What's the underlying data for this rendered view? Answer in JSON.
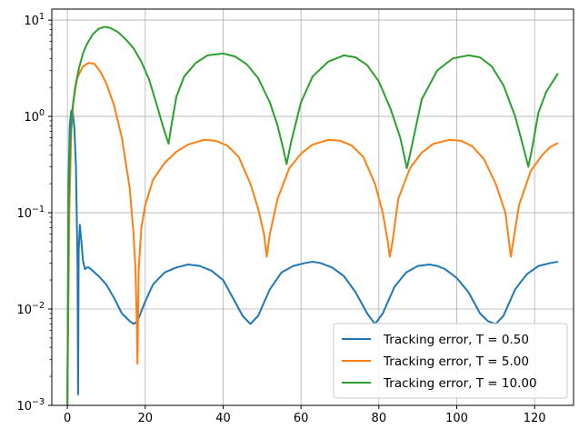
{
  "chart_data": {
    "type": "line",
    "title": "",
    "xlabel": "",
    "ylabel": "",
    "xlim": [
      -4,
      130
    ],
    "ylim": [
      0.001,
      13
    ],
    "yscale": "log",
    "grid": true,
    "legend_position": "lower-right",
    "x_ticks": [
      {
        "value": 0,
        "label": "0"
      },
      {
        "value": 20,
        "label": "20"
      },
      {
        "value": 40,
        "label": "40"
      },
      {
        "value": 60,
        "label": "60"
      },
      {
        "value": 80,
        "label": "80"
      },
      {
        "value": 100,
        "label": "100"
      },
      {
        "value": 120,
        "label": "120"
      }
    ],
    "y_ticks": [
      {
        "value": 0.001,
        "base": "10",
        "exp": "−3"
      },
      {
        "value": 0.01,
        "base": "10",
        "exp": "−2"
      },
      {
        "value": 0.1,
        "base": "10",
        "exp": "−1"
      },
      {
        "value": 1,
        "base": "10",
        "exp": "0"
      },
      {
        "value": 10,
        "base": "10",
        "exp": "1"
      }
    ],
    "series": [
      {
        "name": "Tracking error, T = 0.50",
        "color": "#1f77b4",
        "x": [
          0,
          0.3,
          0.6,
          1.0,
          1.4,
          1.8,
          2.2,
          2.6,
          2.75,
          2.9,
          3.2,
          3.6,
          4.0,
          4.5,
          5.0,
          5.5,
          6.5,
          8,
          10,
          12,
          14,
          16,
          17,
          18,
          20,
          22,
          25,
          28,
          31,
          34,
          37,
          40,
          43,
          45,
          47,
          49,
          52,
          55,
          58,
          61,
          63,
          65,
          68,
          71,
          74,
          77,
          79,
          81,
          84,
          87,
          90,
          93,
          95,
          97,
          100,
          103,
          106,
          108,
          110,
          112,
          115,
          118,
          121,
          124,
          126
        ],
        "y": [
          0.001,
          0.2,
          0.8,
          1.15,
          1.1,
          0.75,
          0.3,
          0.03,
          0.0013,
          0.04,
          0.075,
          0.05,
          0.032,
          0.026,
          0.027,
          0.027,
          0.025,
          0.022,
          0.018,
          0.013,
          0.009,
          0.0075,
          0.007,
          0.0075,
          0.012,
          0.018,
          0.024,
          0.027,
          0.029,
          0.028,
          0.025,
          0.02,
          0.012,
          0.0085,
          0.007,
          0.0085,
          0.016,
          0.024,
          0.028,
          0.03,
          0.031,
          0.03,
          0.027,
          0.022,
          0.015,
          0.009,
          0.007,
          0.009,
          0.017,
          0.024,
          0.028,
          0.029,
          0.028,
          0.026,
          0.021,
          0.015,
          0.009,
          0.0075,
          0.007,
          0.0085,
          0.016,
          0.023,
          0.028,
          0.03,
          0.031
        ]
      },
      {
        "name": "Tracking error, T = 5.00",
        "color": "#ff7f0e",
        "x": [
          0,
          0.5,
          1.0,
          1.5,
          2.5,
          4,
          5.5,
          7,
          8.5,
          10,
          12,
          14,
          16,
          17,
          17.5,
          17.8,
          18.0,
          18.3,
          19,
          20,
          22,
          25,
          28,
          31,
          35,
          38,
          41,
          44,
          47,
          49,
          50.5,
          51.2,
          52,
          54,
          57,
          60,
          63,
          67,
          70,
          73,
          76,
          79,
          81,
          82.3,
          82.8,
          83.5,
          85,
          88,
          91,
          94,
          98,
          101,
          104,
          107,
          110,
          112.5,
          113.9,
          114.5,
          116,
          119,
          122,
          124,
          126
        ],
        "y": [
          0.001,
          0.1,
          0.7,
          1.4,
          2.5,
          3.3,
          3.6,
          3.5,
          2.9,
          2.2,
          1.3,
          0.6,
          0.18,
          0.06,
          0.025,
          0.008,
          0.0027,
          0.025,
          0.07,
          0.12,
          0.22,
          0.33,
          0.43,
          0.51,
          0.57,
          0.56,
          0.5,
          0.38,
          0.2,
          0.11,
          0.06,
          0.035,
          0.06,
          0.14,
          0.29,
          0.41,
          0.51,
          0.57,
          0.56,
          0.5,
          0.38,
          0.2,
          0.1,
          0.05,
          0.035,
          0.05,
          0.14,
          0.29,
          0.42,
          0.52,
          0.57,
          0.56,
          0.49,
          0.36,
          0.2,
          0.1,
          0.035,
          0.05,
          0.12,
          0.27,
          0.4,
          0.48,
          0.53
        ]
      },
      {
        "name": "Tracking error, T = 10.00",
        "color": "#2ca02c",
        "x": [
          0,
          0.3,
          0.7,
          1.2,
          2,
          3,
          4,
          5,
          6.5,
          8,
          9.5,
          11,
          13,
          15,
          17,
          19,
          21,
          23,
          24.5,
          25.5,
          26,
          26.7,
          28,
          30,
          33,
          36,
          40,
          43,
          46,
          49,
          52,
          54,
          55.5,
          56.3,
          57.5,
          60,
          63,
          67,
          71,
          74,
          77,
          80,
          83,
          85.5,
          87.2,
          88.5,
          91,
          95,
          99,
          103,
          106,
          109,
          112,
          115,
          117,
          118.4,
          119.5,
          121,
          123,
          126
        ],
        "y": [
          0.001,
          0.1,
          0.5,
          1.1,
          2.0,
          3.2,
          4.5,
          5.6,
          7.1,
          8.1,
          8.5,
          8.3,
          7.5,
          6.3,
          5.1,
          3.7,
          2.4,
          1.3,
          0.8,
          0.6,
          0.52,
          0.8,
          1.6,
          2.6,
          3.6,
          4.3,
          4.5,
          4.2,
          3.5,
          2.5,
          1.4,
          0.8,
          0.45,
          0.32,
          0.55,
          1.4,
          2.6,
          3.7,
          4.3,
          4.1,
          3.4,
          2.3,
          1.2,
          0.6,
          0.29,
          0.5,
          1.5,
          3.0,
          4.0,
          4.3,
          4.1,
          3.3,
          2.1,
          1.0,
          0.5,
          0.3,
          0.5,
          1.1,
          1.8,
          2.8
        ]
      }
    ]
  }
}
